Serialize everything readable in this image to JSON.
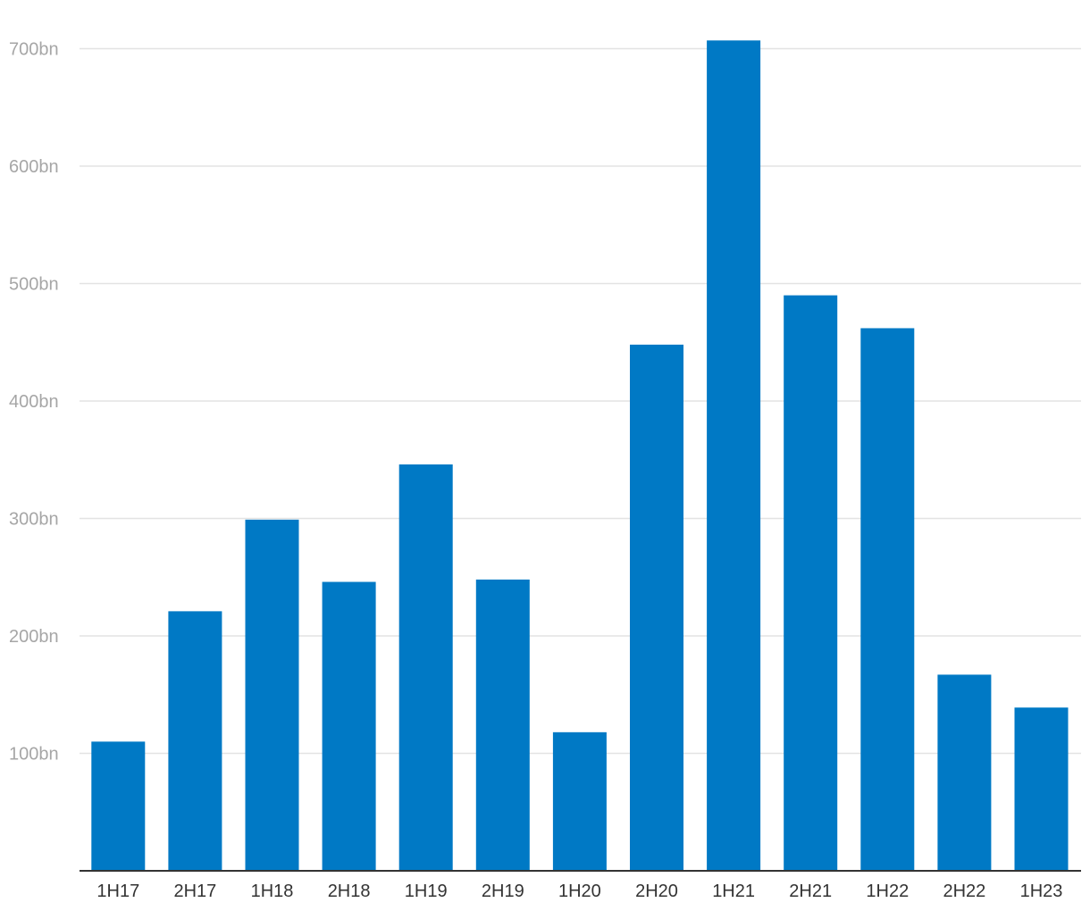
{
  "chart_data": {
    "type": "bar",
    "title": "",
    "xlabel": "",
    "ylabel": "",
    "categories": [
      "1H17",
      "2H17",
      "1H18",
      "2H18",
      "1H19",
      "2H19",
      "1H20",
      "2H20",
      "1H21",
      "2H21",
      "1H22",
      "2H22",
      "1H23"
    ],
    "values": [
      110,
      221,
      299,
      246,
      346,
      248,
      118,
      448,
      707,
      490,
      462,
      167,
      139
    ],
    "ylim": [
      0,
      700
    ],
    "yticks": [
      100,
      200,
      300,
      400,
      500,
      600,
      700
    ],
    "ytick_labels": [
      "100bn",
      "200bn",
      "300bn",
      "400bn",
      "500bn",
      "600bn",
      "700bn"
    ],
    "grid": true,
    "legend": "none",
    "bar_color": "#0079c5"
  }
}
